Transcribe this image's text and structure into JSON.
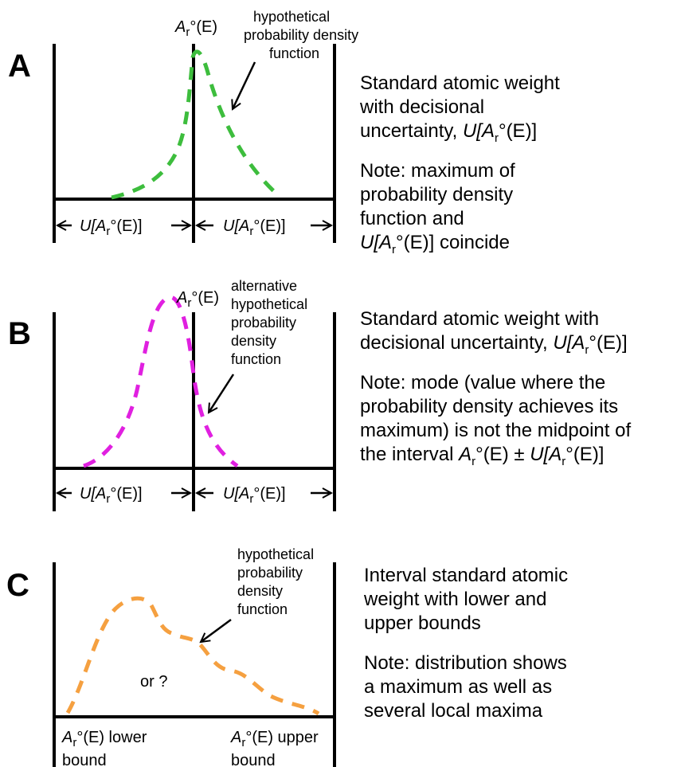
{
  "panels": {
    "a": {
      "letter": "A",
      "peak_label": {
        "symbol": "A",
        "sub": "r",
        "suffix": "°(E)"
      },
      "curve_annotation": [
        "hypothetical",
        "probability density",
        "function"
      ],
      "interval_label": {
        "prefix": "U[",
        "symbol": "A",
        "sub": "r",
        "suffix": "°(E)]"
      },
      "title": [
        "Standard atomic weight",
        "with decisional"
      ],
      "title_last": {
        "text": "uncertainty, ",
        "prefix": "U[",
        "symbol": "A",
        "sub": "r",
        "suffix": "°(E)]"
      },
      "note": [
        "Note: maximum of",
        "probability density",
        "function and"
      ],
      "note_last": {
        "prefix": "U[",
        "symbol": "A",
        "sub": "r",
        "suffix": "°(E)] coincide"
      },
      "curve_color": "#3dbd3d"
    },
    "b": {
      "letter": "B",
      "peak_label": {
        "symbol": "A",
        "sub": "r",
        "suffix": "°(E)"
      },
      "curve_annotation": [
        "alternative",
        "hypothetical",
        "probability",
        "density",
        "function"
      ],
      "interval_label": {
        "prefix": "U[",
        "symbol": "A",
        "sub": "r",
        "suffix": "°(E)]"
      },
      "title": "Standard atomic weight with",
      "title_last": {
        "text": "decisional uncertainty, ",
        "prefix": "U[",
        "symbol": "A",
        "sub": "r",
        "suffix": "°(E)]"
      },
      "note": [
        "Note: mode (value where the",
        "probability density achieves its",
        "maximum) is not the midpoint of"
      ],
      "note_last": {
        "text": "the interval ",
        "symbol": "A",
        "sub": "r",
        "mid": "°(E) ±  ",
        "prefix": "U[",
        "symbol2": "A",
        "sub2": "r",
        "suffix": "°(E)]"
      },
      "curve_color": "#e020e0"
    },
    "c": {
      "letter": "C",
      "curve_annotation": [
        "hypothetical",
        "probability",
        "density",
        "function"
      ],
      "or_label": "or ?",
      "lower": {
        "symbol": "A",
        "sub": "r",
        "suffix": "°(E) lower",
        "line2": "bound"
      },
      "upper": {
        "symbol": "A",
        "sub": "r",
        "suffix": "°(E) upper",
        "line2": "bound"
      },
      "title": [
        "Interval standard atomic",
        "weight with lower and",
        "upper bounds"
      ],
      "note": [
        "Note: distribution shows",
        "a maximum as well as",
        "several local maxima"
      ],
      "curve_color": "#f5a040"
    }
  }
}
